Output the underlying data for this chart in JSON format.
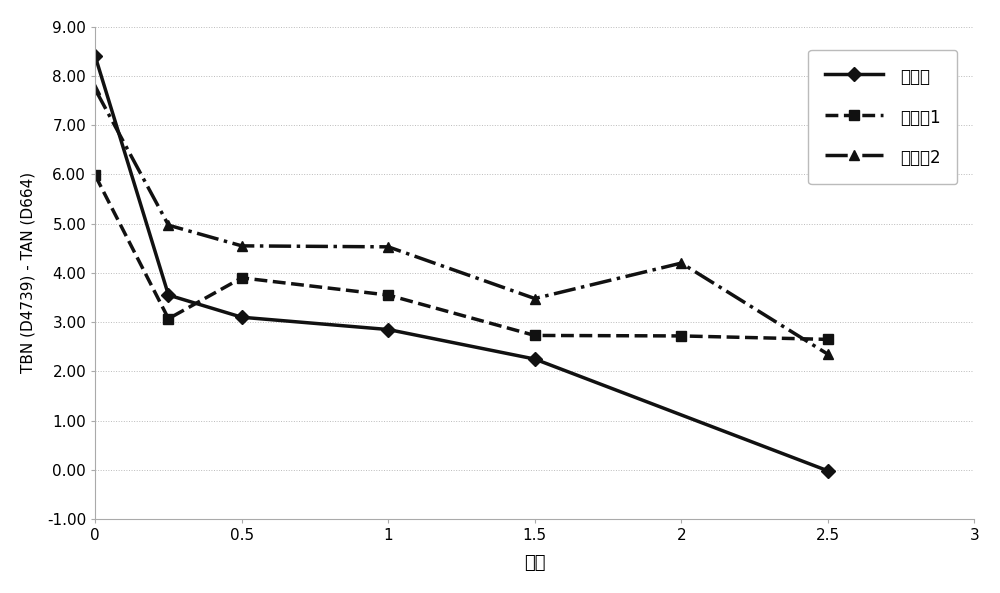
{
  "series": [
    {
      "label": "参比油",
      "x": [
        0,
        0.25,
        0.5,
        1.0,
        1.5,
        2.5
      ],
      "y": [
        8.4,
        3.55,
        3.1,
        2.85,
        2.25,
        -0.02
      ],
      "linestyle": "-",
      "marker": "D",
      "linewidth": 2.5,
      "markersize": 7,
      "color": "#111111",
      "dashes": []
    },
    {
      "label": "实施兣1",
      "x": [
        0,
        0.25,
        0.5,
        1.0,
        1.5,
        2.0,
        2.5
      ],
      "y": [
        5.98,
        3.07,
        3.9,
        3.55,
        2.73,
        2.72,
        2.65
      ],
      "linestyle": "--",
      "marker": "s",
      "linewidth": 2.5,
      "markersize": 7,
      "color": "#111111",
      "dashes": [
        8,
        4
      ]
    },
    {
      "label": "实施兣2",
      "x": [
        0,
        0.25,
        0.5,
        1.0,
        1.5,
        2.0,
        2.5
      ],
      "y": [
        7.73,
        4.97,
        4.55,
        4.53,
        3.48,
        4.2,
        2.35
      ],
      "linestyle": "-.",
      "marker": "^",
      "linewidth": 2.5,
      "markersize": 7,
      "color": "#111111",
      "dashes": [
        6,
        2,
        1,
        2
      ]
    }
  ],
  "xlabel": "小时",
  "ylabel": "TBN (D4739) - TAN (D664)",
  "xlim": [
    0,
    3
  ],
  "ylim": [
    -1.0,
    9.0
  ],
  "xticks": [
    0,
    0.5,
    1,
    1.5,
    2,
    2.5,
    3
  ],
  "yticks": [
    -1.0,
    0.0,
    1.0,
    2.0,
    3.0,
    4.0,
    5.0,
    6.0,
    7.0,
    8.0,
    9.0
  ],
  "ytick_labels": [
    "-1.00",
    "0.00",
    "1.00",
    "2.00",
    "3.00",
    "4.00",
    "5.00",
    "6.00",
    "7.00",
    "8.00",
    "9.00"
  ],
  "xtick_labels": [
    "0",
    "0.5",
    "1",
    "1.5",
    "2",
    "2.5",
    "3"
  ],
  "background_color": "#ffffff",
  "grid_color": "#bbbbbb"
}
